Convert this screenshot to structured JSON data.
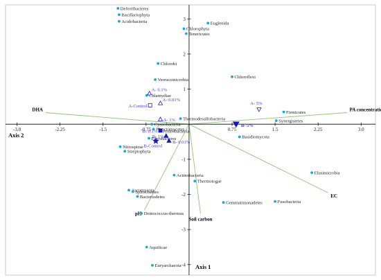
{
  "chart_data": {
    "type": "scatter",
    "subtype": "rda-biplot",
    "title": "",
    "xlabel": "Axis 2",
    "ylabel": "Axis 1",
    "xlim": [
      -3.2,
      3.25
    ],
    "ylim": [
      -4.3,
      3.4
    ],
    "x_ticks": [
      "-3.0",
      "-2.25",
      "-1.5",
      "-0.75",
      "0.75",
      "1.5",
      "2.25",
      "3.0"
    ],
    "y_ticks": [
      "3",
      "2",
      "1",
      "-1",
      "-2",
      "-3",
      "-4"
    ],
    "x_tick_values": [
      -3.0,
      -2.25,
      -1.5,
      -0.75,
      0.75,
      1.5,
      2.25,
      3.0
    ],
    "y_tick_values": [
      3,
      2,
      1,
      -1,
      -2,
      -3,
      -4
    ],
    "colors": {
      "species": "#1aa7e0",
      "samples": "#1818b8",
      "sample_label": "#3a3ad8",
      "env": "#8fc27a"
    },
    "env_vectors": [
      {
        "label": "DHA",
        "x": -2.5,
        "y": 0.33,
        "anchor": "end"
      },
      {
        "label": "PA concentration",
        "x": 2.75,
        "y": 0.33,
        "anchor": "start"
      },
      {
        "label": "EC",
        "x": 2.42,
        "y": -1.95,
        "anchor": "start"
      },
      {
        "label": "Soil carbon",
        "x": 0.2,
        "y": -2.55,
        "anchor": "middle"
      },
      {
        "label": "pH",
        "x": -0.78,
        "y": -2.45,
        "anchor": "end"
      }
    ],
    "species": [
      {
        "label": "Deferribacteres",
        "x": -1.24,
        "y": 3.3
      },
      {
        "label": "Bacillariophyta",
        "x": -1.22,
        "y": 3.12
      },
      {
        "label": "Acidobacteria",
        "x": -1.22,
        "y": 2.93
      },
      {
        "label": "Euglenida",
        "x": 0.33,
        "y": 2.88
      },
      {
        "label": "Chlorophyta",
        "x": -0.09,
        "y": 2.72
      },
      {
        "label": "Tenericutes",
        "x": -0.05,
        "y": 2.58
      },
      {
        "label": "Chlorobi",
        "x": -0.54,
        "y": 1.73
      },
      {
        "label": "Chloroflexi",
        "x": 0.75,
        "y": 1.35
      },
      {
        "label": "Verrucomicrobia",
        "x": -0.59,
        "y": 1.27
      },
      {
        "label": "Chlamydiae",
        "x": -0.74,
        "y": 0.82
      },
      {
        "label": "Thermodesulfobacteria",
        "x": -0.15,
        "y": 0.16
      },
      {
        "label": "Firmicutes",
        "x": 1.65,
        "y": 0.35
      },
      {
        "label": "Synergistetes",
        "x": 1.52,
        "y": 0.1
      },
      {
        "label": "Cyanobacteria",
        "x": -0.65,
        "y": 0.0
      },
      {
        "label": "Planctomycetes",
        "x": -0.62,
        "y": -0.14
      },
      {
        "label": "Proteobacteria",
        "x": -0.5,
        "y": -0.2
      },
      {
        "label": "Fibrobacteres",
        "x": -0.7,
        "y": -0.4
      },
      {
        "label": "Nitrospirae",
        "x": -1.2,
        "y": -0.64
      },
      {
        "label": "Streptophyta",
        "x": -1.12,
        "y": -0.77
      },
      {
        "label": "Basidiomycota",
        "x": 0.88,
        "y": -0.36
      },
      {
        "label": "Elusimicrobia",
        "x": 2.14,
        "y": -1.38
      },
      {
        "label": "Actinobacteria",
        "x": -0.26,
        "y": -1.45
      },
      {
        "label": "Thermotogae",
        "x": 0.1,
        "y": -1.62
      },
      {
        "label": "Ascomycota",
        "x": -1.05,
        "y": -1.88
      },
      {
        "label": "Spirochaetes",
        "x": -0.98,
        "y": -1.92
      },
      {
        "label": "Bacteriodetes",
        "x": -0.9,
        "y": -2.06
      },
      {
        "label": "Gemmatimonadetes",
        "x": 0.6,
        "y": -2.23
      },
      {
        "label": "Fusobacteria",
        "x": 1.5,
        "y": -2.2
      },
      {
        "label": "Deinococcus-thermus",
        "x": -0.83,
        "y": -2.54
      },
      {
        "label": "Aquificae",
        "x": -0.74,
        "y": -3.5
      },
      {
        "label": "Euryarchaeota",
        "x": -0.64,
        "y": -4.02
      }
    ],
    "samples": [
      {
        "label": "A- 0.1%",
        "x": -0.69,
        "y": 0.88,
        "shape": "triangle-up-open",
        "label_dx": 3,
        "label_dy": -3
      },
      {
        "label": "A- 0.01%",
        "x": -0.5,
        "y": 0.6,
        "shape": "triangle-up-open",
        "label_dx": 3,
        "label_dy": -3
      },
      {
        "label": "A-Control",
        "x": -0.68,
        "y": 0.54,
        "shape": "square-open",
        "label_dx": -4,
        "label_dy": 3,
        "anchor": "end"
      },
      {
        "label": "A- 1%",
        "x": -0.5,
        "y": 0.14,
        "shape": "triangle-up-open",
        "label_dx": 4,
        "label_dy": 3
      },
      {
        "label": "A- 5%",
        "x": 1.22,
        "y": 0.42,
        "shape": "triangle-down-open",
        "label_dx": -4,
        "label_dy": -7,
        "anchor": "middle"
      },
      {
        "label": "B- 5%",
        "x": 0.82,
        "y": 0.0,
        "shape": "triangle-down-filled",
        "label_dx": 7,
        "label_dy": 4,
        "big": true
      },
      {
        "label": "B- 0.1%",
        "x": -0.5,
        "y": -0.18,
        "shape": "square-filled",
        "label_dx": -4,
        "label_dy": 3,
        "anchor": "end"
      },
      {
        "label": "B- 1%",
        "x": -0.4,
        "y": -0.33,
        "shape": "triangle-up-filled",
        "label_dx": -3,
        "label_dy": 3,
        "anchor": "end"
      },
      {
        "label": "B- 0.01%",
        "x": -0.35,
        "y": -0.47,
        "shape": "triangle-up-filled",
        "label_dx": 5,
        "label_dy": 4
      },
      {
        "label": "B-Control",
        "x": -0.58,
        "y": -0.48,
        "shape": "star-filled",
        "label_dx": -4,
        "label_dy": 9,
        "anchor": "middle"
      }
    ]
  }
}
